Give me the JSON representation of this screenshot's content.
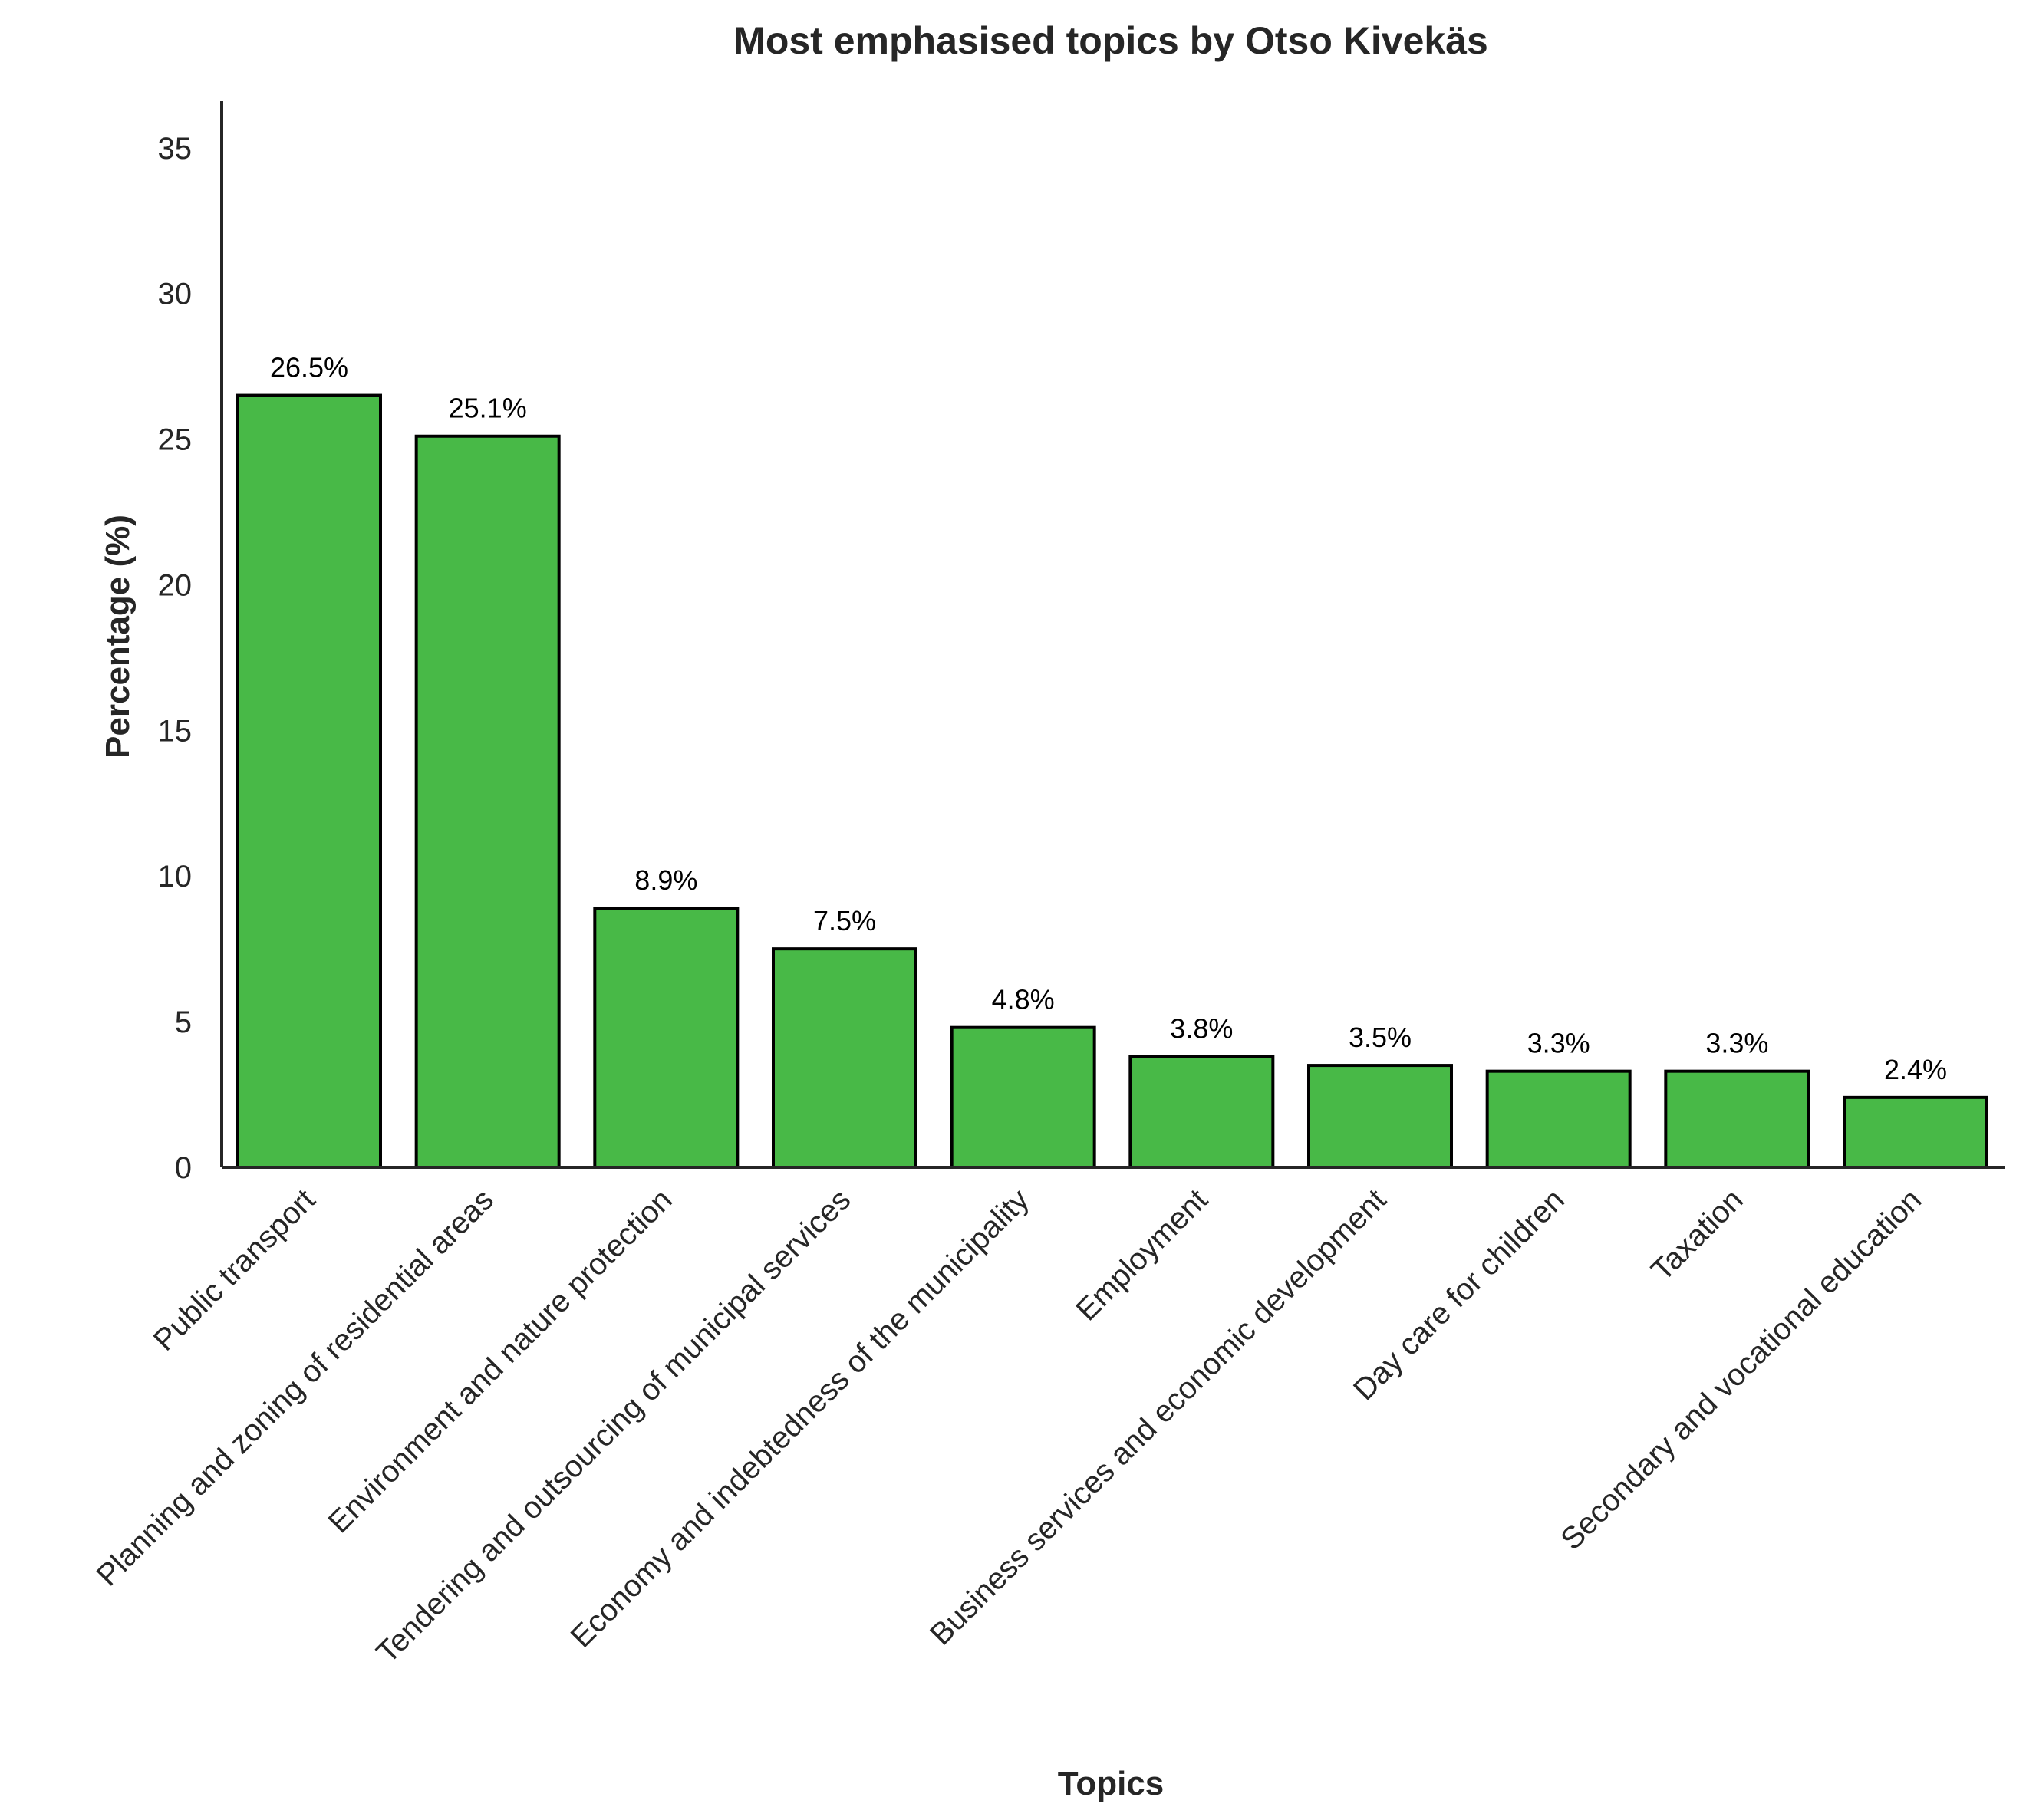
{
  "chart_data": {
    "type": "bar",
    "title": "Most emphasised topics by Otso Kivekäs",
    "xlabel": "Topics",
    "ylabel": "Percentage (%)",
    "categories": [
      "Public transport",
      "Planning and zoning of residential areas",
      "Environment and nature protection",
      "Tendering and outsourcing of municipal services",
      "Economy and indebtedness of the municipality",
      "Employment",
      "Business services and economic development",
      "Day care for children",
      "Taxation",
      "Secondary and vocational education"
    ],
    "values": [
      26.5,
      25.1,
      8.9,
      7.5,
      4.8,
      3.8,
      3.5,
      3.3,
      3.3,
      2.4
    ],
    "value_labels": [
      "26.5%",
      "25.1%",
      "8.9%",
      "7.5%",
      "4.8%",
      "3.8%",
      "3.5%",
      "3.3%",
      "3.3%",
      "2.4%"
    ],
    "yticks": [
      0,
      5,
      10,
      15,
      20,
      25,
      30,
      35
    ],
    "ylim": [
      0,
      36.6
    ],
    "grid": false,
    "bar_color": "#48b947",
    "bar_edge_color": "#000000"
  }
}
